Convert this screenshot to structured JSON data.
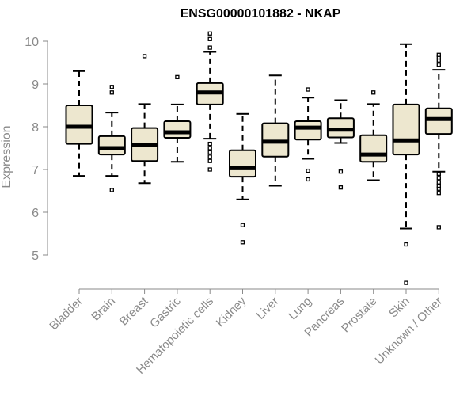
{
  "chart_data": {
    "type": "box",
    "title": "ENSG00000101882 - NKAP",
    "xlabel": "",
    "ylabel": "Expression",
    "ylim": [
      4.2,
      10.35
    ],
    "yticks": [
      5,
      6,
      7,
      8,
      9,
      10
    ],
    "box_fill": "#ede7cf",
    "box_stroke": "#000000",
    "categories": [
      "Bladder",
      "Brain",
      "Breast",
      "Gastric",
      "Hematopoietic cells",
      "Kidney",
      "Liver",
      "Lung",
      "Pancreas",
      "Prostate",
      "Skin",
      "Unknown / Other"
    ],
    "boxes": [
      {
        "name": "Bladder",
        "whisker_low": 6.85,
        "q1": 7.6,
        "median": 8.0,
        "q3": 8.5,
        "whisker_high": 9.3,
        "outliers": []
      },
      {
        "name": "Brain",
        "whisker_low": 6.85,
        "q1": 7.35,
        "median": 7.5,
        "q3": 7.78,
        "whisker_high": 8.33,
        "outliers": [
          6.52,
          8.8,
          8.93
        ]
      },
      {
        "name": "Breast",
        "whisker_low": 6.68,
        "q1": 7.2,
        "median": 7.57,
        "q3": 7.97,
        "whisker_high": 8.53,
        "outliers": [
          9.65
        ]
      },
      {
        "name": "Gastric",
        "whisker_low": 7.18,
        "q1": 7.74,
        "median": 7.87,
        "q3": 8.13,
        "whisker_high": 8.52,
        "outliers": [
          9.16
        ]
      },
      {
        "name": "Hematopoietic cells",
        "whisker_low": 7.72,
        "q1": 8.52,
        "median": 8.8,
        "q3": 9.02,
        "whisker_high": 9.75,
        "outliers": [
          7.0,
          7.2,
          7.3,
          7.4,
          7.5,
          7.6,
          9.85,
          10.05,
          10.18
        ]
      },
      {
        "name": "Kidney",
        "whisker_low": 6.3,
        "q1": 6.83,
        "median": 7.03,
        "q3": 7.45,
        "whisker_high": 8.3,
        "outliers": [
          5.3,
          5.7
        ]
      },
      {
        "name": "Liver",
        "whisker_low": 6.62,
        "q1": 7.3,
        "median": 7.65,
        "q3": 8.08,
        "whisker_high": 9.2,
        "outliers": []
      },
      {
        "name": "Lung",
        "whisker_low": 7.25,
        "q1": 7.7,
        "median": 7.98,
        "q3": 8.13,
        "whisker_high": 8.68,
        "outliers": [
          6.77,
          6.97,
          8.87
        ]
      },
      {
        "name": "Pancreas",
        "whisker_low": 7.62,
        "q1": 7.75,
        "median": 7.93,
        "q3": 8.2,
        "whisker_high": 8.62,
        "outliers": [
          6.58,
          6.95
        ]
      },
      {
        "name": "Prostate",
        "whisker_low": 6.75,
        "q1": 7.18,
        "median": 7.35,
        "q3": 7.8,
        "whisker_high": 8.53,
        "outliers": [
          8.8
        ]
      },
      {
        "name": "Skin",
        "whisker_low": 5.62,
        "q1": 7.35,
        "median": 7.68,
        "q3": 8.52,
        "whisker_high": 9.93,
        "outliers": [
          4.35,
          5.25
        ]
      },
      {
        "name": "Unknown / Other",
        "whisker_low": 6.95,
        "q1": 7.83,
        "median": 8.18,
        "q3": 8.43,
        "whisker_high": 9.33,
        "outliers": [
          5.65,
          6.45,
          6.55,
          6.62,
          6.7,
          6.8,
          6.9,
          9.45,
          9.55,
          9.62,
          9.68
        ]
      }
    ],
    "grid": false,
    "legend": "none"
  }
}
